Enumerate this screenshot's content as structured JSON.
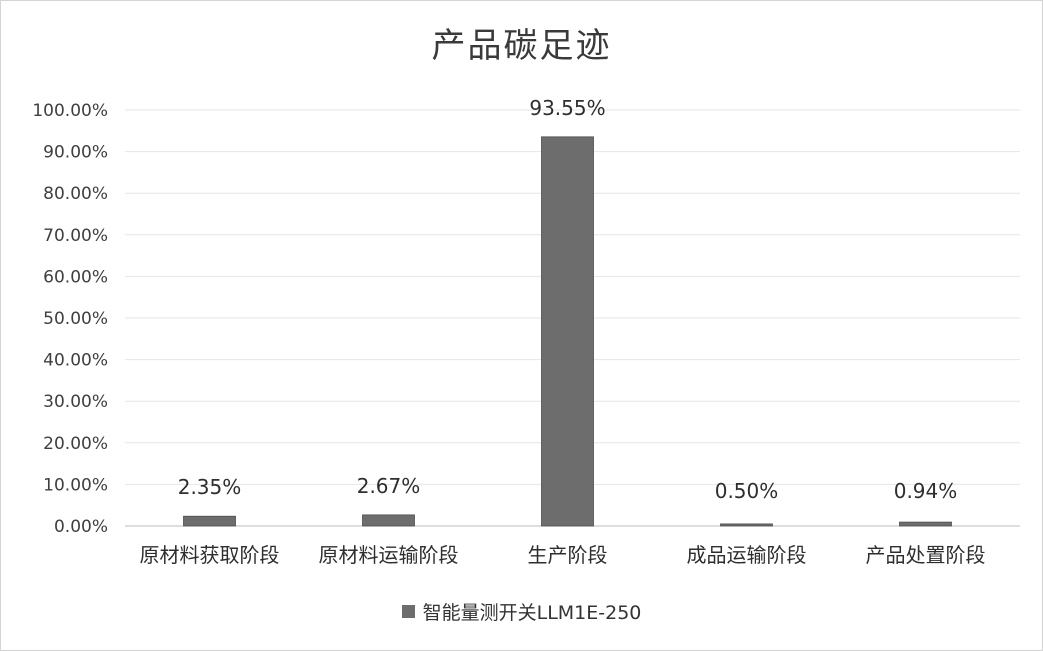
{
  "chart_data": {
    "type": "bar",
    "title": "产品碳足迹",
    "categories": [
      "原材料获取阶段",
      "原材料运输阶段",
      "生产阶段",
      "成品运输阶段",
      "产品处置阶段"
    ],
    "series": [
      {
        "name": "智能量测开关LLM1E-250",
        "values": [
          2.35,
          2.67,
          93.55,
          0.5,
          0.94
        ],
        "data_labels": [
          "2.35%",
          "2.67%",
          "93.55%",
          "0.50%",
          "0.94%"
        ]
      }
    ],
    "ylim": [
      0,
      100
    ],
    "yticks": [
      "0.00%",
      "10.00%",
      "20.00%",
      "30.00%",
      "40.00%",
      "50.00%",
      "60.00%",
      "70.00%",
      "80.00%",
      "90.00%",
      "100.00%"
    ],
    "grid": true,
    "legend_position": "bottom",
    "bar_color": "#6d6d6d"
  }
}
